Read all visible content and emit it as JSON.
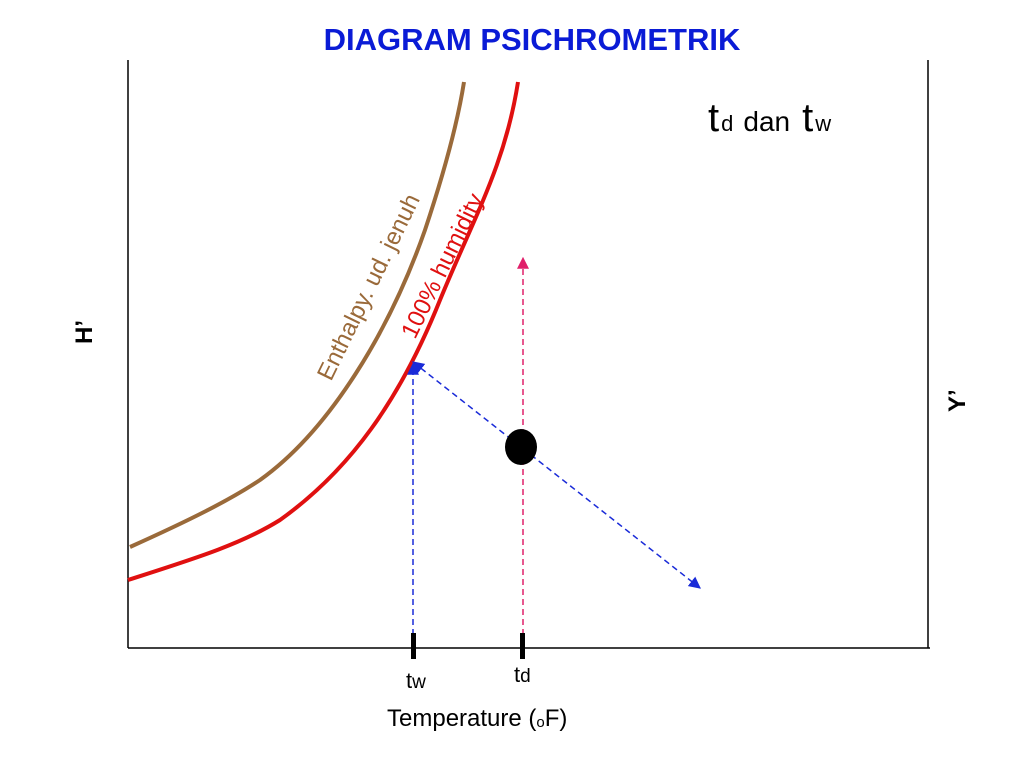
{
  "title": "DIAGRAM PSICHROMETRIK",
  "heading": {
    "t1": "t",
    "sub1": "d",
    "mid": "dan",
    "t2": "t",
    "sub2": "w"
  },
  "y_axis_left_label": "H’",
  "y_axis_right_label": "Y’",
  "x_axis_label": {
    "before": "Temperature (",
    "sup": "o",
    "after": "F)"
  },
  "curves": {
    "enthalpy": {
      "label": "Enthalpy. ud. jenuh",
      "color": "#9a6a3a"
    },
    "saturation": {
      "label": "100% humidity",
      "color": "#e01010"
    }
  },
  "ticks": {
    "tw": {
      "t": "t",
      "sub": "w"
    },
    "td": {
      "t": "t",
      "sub": "d"
    }
  },
  "colors": {
    "title": "#0a1bd6",
    "blue_dashed": "#1a2bd8",
    "magenta_dashed": "#e0206a",
    "point": "#000000",
    "axis": "#000000"
  }
}
